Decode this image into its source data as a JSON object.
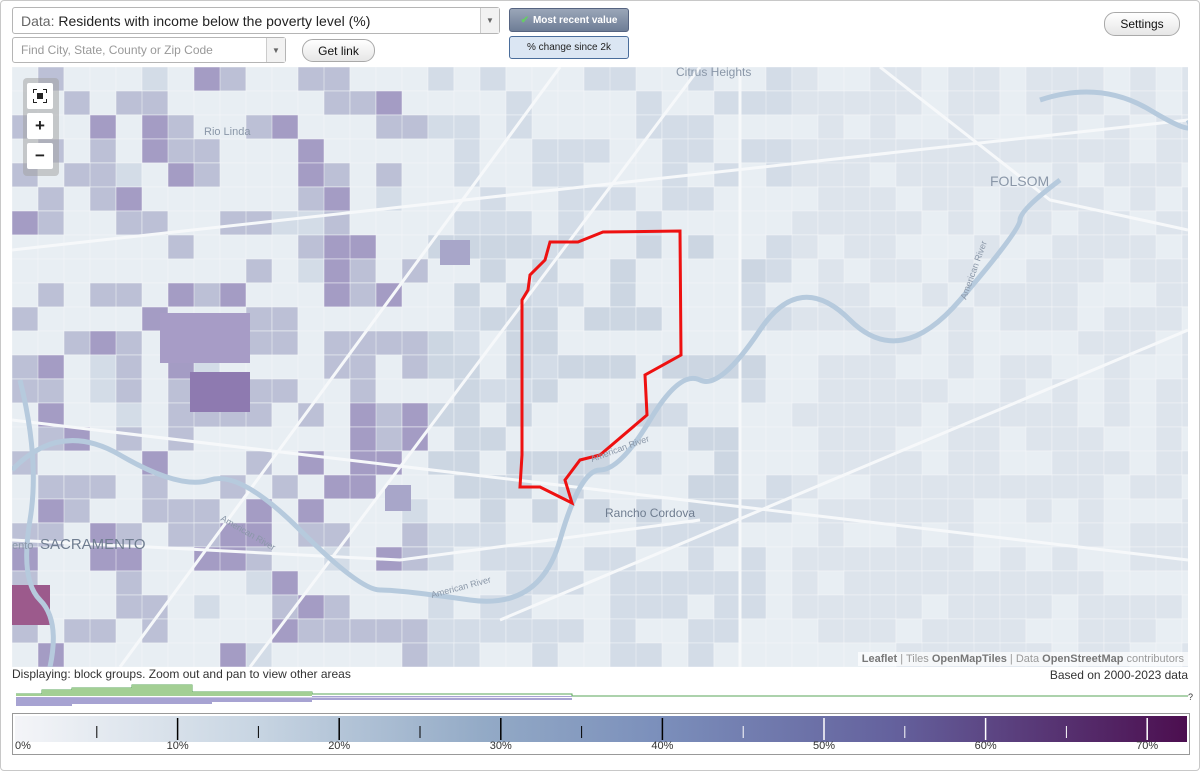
{
  "header": {
    "data_prefix": "Data:",
    "data_value": "Residents with income below the poverty level (%)",
    "search_placeholder": "Find City, State, County or Zip Code",
    "get_link": "Get link",
    "most_recent": "Most recent value",
    "pct_change": "% change since 2k",
    "settings": "Settings"
  },
  "map": {
    "labels": [
      "Citrus Heights",
      "Rio Linda",
      "FOLSOM",
      "SACRAMENTO",
      "ento",
      "Rancho Cordova",
      "American River",
      "American River",
      "American River",
      "American River"
    ],
    "zoom": {
      "in": "+",
      "out": "−"
    },
    "attribution": {
      "leaflet": "Leaflet",
      "separator": "|",
      "tiles_prefix": "Tiles",
      "tiles": "OpenMapTiles",
      "data_prefix": "Data",
      "data": "OpenStreetMap",
      "suffix": "contributors"
    }
  },
  "footer": {
    "displaying": "Displaying: block groups. Zoom out and pan to view other areas",
    "based_on": "Based on 2000-2023 data",
    "question": "?"
  },
  "legend": {
    "labels": [
      "0%",
      "10%",
      "20%",
      "30%",
      "40%",
      "50%",
      "60%",
      "70%"
    ]
  }
}
